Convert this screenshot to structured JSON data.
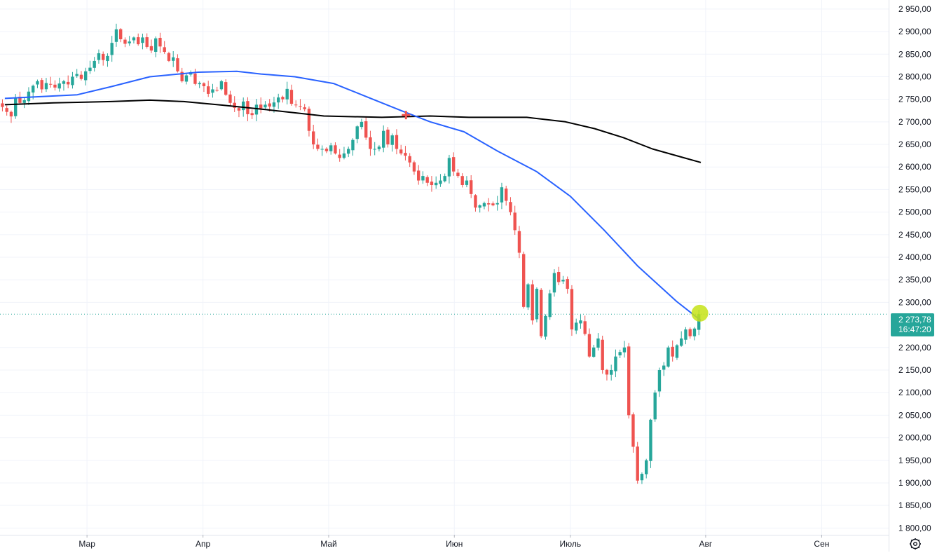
{
  "chart_data": {
    "type": "candlestick",
    "y_axis": {
      "min": 1785,
      "max": 2970,
      "side": "right",
      "ticks": [
        {
          "value": 2950,
          "label": "2 950,00"
        },
        {
          "value": 2900,
          "label": "2 900,00"
        },
        {
          "value": 2850,
          "label": "2 850,00"
        },
        {
          "value": 2800,
          "label": "2 800,00"
        },
        {
          "value": 2750,
          "label": "2 750,00"
        },
        {
          "value": 2700,
          "label": "2 700,00"
        },
        {
          "value": 2650,
          "label": "2 650,00"
        },
        {
          "value": 2600,
          "label": "2 600,00"
        },
        {
          "value": 2550,
          "label": "2 550,00"
        },
        {
          "value": 2500,
          "label": "2 500,00"
        },
        {
          "value": 2450,
          "label": "2 450,00"
        },
        {
          "value": 2400,
          "label": "2 400,00"
        },
        {
          "value": 2350,
          "label": "2 350,00"
        },
        {
          "value": 2300,
          "label": "2 300,00"
        },
        {
          "value": 2200,
          "label": "2 200,00"
        },
        {
          "value": 2150,
          "label": "2 150,00"
        },
        {
          "value": 2100,
          "label": "2 100,00"
        },
        {
          "value": 2050,
          "label": "2 050,00"
        },
        {
          "value": 2000,
          "label": "2 000,00"
        },
        {
          "value": 1950,
          "label": "1 950,00"
        },
        {
          "value": 1900,
          "label": "1 900,00"
        },
        {
          "value": 1850,
          "label": "1 850,00"
        },
        {
          "value": 1800,
          "label": "1 800,00"
        }
      ]
    },
    "x_axis": {
      "bar_min": -1,
      "bar_max": 144,
      "labels": [
        {
          "bar": 17,
          "label": "Мар"
        },
        {
          "bar": 41,
          "label": "Апр"
        },
        {
          "bar": 67,
          "label": "Май"
        },
        {
          "bar": 93,
          "label": "Июн"
        },
        {
          "bar": 117,
          "label": "Июль"
        },
        {
          "bar": 145,
          "label": "Авг"
        },
        {
          "bar": 169,
          "label": "Сен"
        }
      ]
    },
    "grid": true,
    "colors": {
      "up": "#26a69a",
      "down": "#ef5350",
      "ma_fast": "#2962ff",
      "ma_slow": "#000000",
      "price_line": "#26a69a",
      "marker": "#c6e317",
      "cross_marker": "#ef5350"
    },
    "series_close": [
      2733,
      2722,
      2712,
      2754,
      2742,
      2748,
      2767,
      2780,
      2790,
      2772,
      2786,
      2784,
      2776,
      2785,
      2790,
      2783,
      2800,
      2806,
      2795,
      2812,
      2820,
      2835,
      2852,
      2837,
      2846,
      2875,
      2905,
      2883,
      2873,
      2878,
      2887,
      2872,
      2887,
      2866,
      2858,
      2885,
      2867,
      2855,
      2835,
      2843,
      2812,
      2790,
      2803,
      2810,
      2784,
      2786,
      2779,
      2762,
      2772,
      2770,
      2790,
      2760,
      2742,
      2731,
      2725,
      2745,
      2717,
      2715,
      2738,
      2730,
      2738,
      2734,
      2743,
      2754,
      2750,
      2773,
      2740,
      2738,
      2735,
      2728,
      2680,
      2650,
      2640,
      2640,
      2635,
      2648,
      2630,
      2620,
      2630,
      2640,
      2660,
      2690,
      2700,
      2665,
      2640,
      2640,
      2645,
      2680,
      2650,
      2670,
      2640,
      2630,
      2625,
      2610,
      2590,
      2570,
      2580,
      2565,
      2560,
      2565,
      2570,
      2580,
      2620,
      2590,
      2580,
      2560,
      2570,
      2540,
      2510,
      2515,
      2520,
      2517,
      2515,
      2520,
      2555,
      2525,
      2500,
      2460,
      2410,
      2290,
      2340,
      2260,
      2330,
      2225,
      2270,
      2320,
      2365,
      2345,
      2350,
      2330,
      2240,
      2255,
      2260,
      2230,
      2180,
      2200,
      2220,
      2150,
      2140,
      2150,
      2180,
      2190,
      2200,
      2050,
      1980,
      1905,
      1920,
      1950,
      2040,
      2100,
      2150,
      2160,
      2200,
      2180,
      2205,
      2220,
      2240,
      2225,
      2242,
      2273.78
    ],
    "series_ohlc_meta": {
      "first_bar_index": 0,
      "bars_per_step": 0.8
    },
    "ma_fast": [
      [
        0,
        2752
      ],
      [
        15,
        2760
      ],
      [
        22,
        2778
      ],
      [
        30,
        2800
      ],
      [
        40,
        2810
      ],
      [
        48,
        2812
      ],
      [
        53,
        2806
      ],
      [
        60,
        2800
      ],
      [
        68,
        2785
      ],
      [
        75,
        2755
      ],
      [
        82,
        2725
      ],
      [
        88,
        2700
      ],
      [
        95,
        2678
      ],
      [
        102,
        2635
      ],
      [
        110,
        2590
      ],
      [
        117,
        2535
      ],
      [
        124,
        2460
      ],
      [
        131,
        2380
      ],
      [
        139,
        2302
      ],
      [
        144,
        2260
      ]
    ],
    "ma_slow": [
      [
        0,
        2738
      ],
      [
        10,
        2742
      ],
      [
        22,
        2745
      ],
      [
        30,
        2748
      ],
      [
        37,
        2745
      ],
      [
        45,
        2737
      ],
      [
        55,
        2726
      ],
      [
        66,
        2713
      ],
      [
        78,
        2710
      ],
      [
        88,
        2713
      ],
      [
        96,
        2710
      ],
      [
        108,
        2710
      ],
      [
        116,
        2700
      ],
      [
        122,
        2685
      ],
      [
        128,
        2665
      ],
      [
        134,
        2640
      ],
      [
        140,
        2622
      ],
      [
        144,
        2610
      ]
    ],
    "cross_marker": {
      "bar": 83,
      "value": 2715
    },
    "last_point_marker": {
      "bar": 143.8,
      "value": 2276
    },
    "current_price": {
      "value": 2273.78,
      "label": "2 273,78",
      "countdown": "16:47:20"
    }
  },
  "ui": {
    "settings_icon": "gear-icon"
  }
}
